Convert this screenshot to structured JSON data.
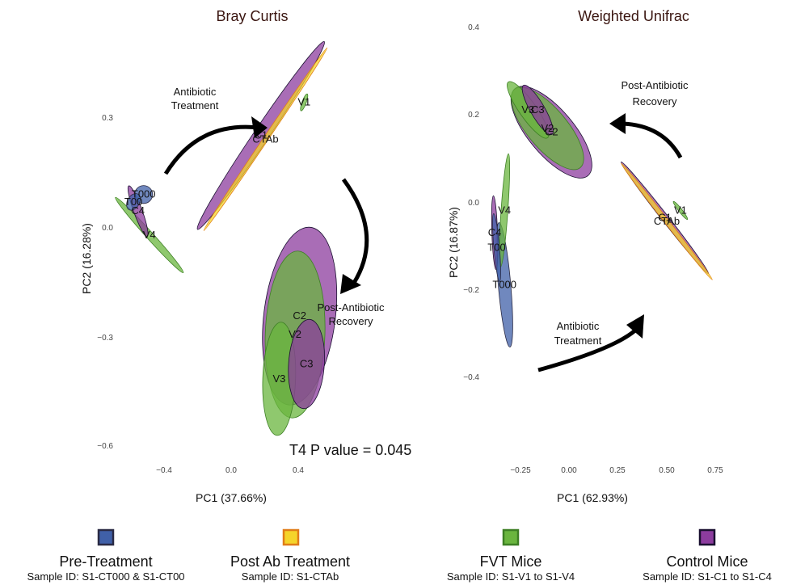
{
  "chart_data": [
    {
      "type": "scatter",
      "title": "Bray Curtis",
      "xlabel": "PC1  (37.66%)",
      "ylabel": "PC2  (16.28%)",
      "x_ticks": [
        "−0.4",
        "0.0",
        "0.4"
      ],
      "y_ticks": [
        "0.3",
        "0.0",
        "−0.3",
        "−0.6"
      ],
      "xlim": [
        -0.6,
        0.82
      ],
      "ylim": [
        -0.62,
        0.52
      ],
      "ellipses": [
        {
          "label": "T000",
          "group": "Pre-Treatment",
          "cx": -0.395,
          "cy": 0.08,
          "rx": 0.03,
          "ry": 0.03,
          "angle": 0
        },
        {
          "label": "T00",
          "group": "Pre-Treatment",
          "cx": -0.44,
          "cy": 0.06,
          "rx": 0.03,
          "ry": 0.02,
          "angle": 60
        },
        {
          "label": "C4",
          "group": "Control Mice",
          "cx": -0.42,
          "cy": 0.035,
          "rx": 0.09,
          "ry": 0.014,
          "angle": -70
        },
        {
          "label": "V4",
          "group": "FVT Mice",
          "cx": -0.37,
          "cy": -0.03,
          "rx": 0.17,
          "ry": 0.012,
          "angle": -48
        },
        {
          "label": "C1",
          "group": "Control Mice",
          "cx": 0.12,
          "cy": 0.24,
          "rx": 0.38,
          "ry": 0.025,
          "angle": 56
        },
        {
          "label": "CTAb",
          "group": "Post Ab Treatment",
          "cx": 0.14,
          "cy": 0.23,
          "rx": 0.37,
          "ry": 0.008,
          "angle": 56
        },
        {
          "label": "V1",
          "group": "FVT Mice",
          "cx": 0.31,
          "cy": 0.33,
          "rx": 0.03,
          "ry": 0.007,
          "angle": 70
        },
        {
          "label": "C2",
          "group": "Control Mice",
          "cx": 0.29,
          "cy": -0.25,
          "rx": 0.3,
          "ry": 0.12,
          "angle": -97
        },
        {
          "label": "V2",
          "group": "FVT Mice",
          "cx": 0.27,
          "cy": -0.3,
          "rx": 0.28,
          "ry": 0.1,
          "angle": -92
        },
        {
          "label": "V3",
          "group": "FVT Mice",
          "cx": 0.2,
          "cy": -0.42,
          "rx": 0.19,
          "ry": 0.055,
          "angle": 88
        },
        {
          "label": "C3",
          "group": "Control Mice",
          "cx": 0.32,
          "cy": -0.38,
          "rx": 0.15,
          "ry": 0.06,
          "angle": -94
        }
      ],
      "annotations": [
        {
          "text": [
            "Antibiotic",
            "Treatment"
          ]
        },
        {
          "text": [
            "Post-Antibiotic",
            "Recovery"
          ]
        },
        {
          "text": [
            "T4 P value = 0.045"
          ]
        }
      ]
    },
    {
      "type": "scatter",
      "title": "Weighted Unifrac",
      "xlabel": "PC1  (62.93%)",
      "ylabel": "PC2  (16.87%)",
      "x_ticks": [
        "−0.25",
        "0.00",
        "0.25",
        "0.50",
        "0.75"
      ],
      "y_ticks": [
        "0.4",
        "0.2",
        "0.0",
        "−0.2",
        "−0.4"
      ],
      "xlim": [
        -0.4,
        0.84
      ],
      "ylim": [
        -0.52,
        0.5
      ],
      "ellipses": [
        {
          "label": "V3",
          "group": "FVT Mice",
          "cx": -0.18,
          "cy": 0.27,
          "rx": 0.12,
          "ry": 0.03,
          "angle": -55
        },
        {
          "label": "C3",
          "group": "Control Mice",
          "cx": -0.13,
          "cy": 0.27,
          "rx": 0.1,
          "ry": 0.025,
          "angle": -60
        },
        {
          "label": "C2",
          "group": "Control Mice",
          "cx": -0.06,
          "cy": 0.21,
          "rx": 0.2,
          "ry": 0.08,
          "angle": -50
        },
        {
          "label": "V2",
          "group": "FVT Mice",
          "cx": -0.08,
          "cy": 0.22,
          "rx": 0.18,
          "ry": 0.07,
          "angle": -50
        },
        {
          "label": "V4",
          "group": "FVT Mice",
          "cx": -0.3,
          "cy": 0.0,
          "rx": 0.2,
          "ry": 0.012,
          "angle": 86
        },
        {
          "label": "C4",
          "group": "Control Mice",
          "cx": -0.35,
          "cy": -0.06,
          "rx": 0.13,
          "ry": 0.01,
          "angle": 92
        },
        {
          "label": "T00",
          "group": "Pre-Treatment",
          "cx": -0.34,
          "cy": -0.1,
          "rx": 0.12,
          "ry": 0.01,
          "angle": 95
        },
        {
          "label": "T000",
          "group": "Pre-Treatment",
          "cx": -0.3,
          "cy": -0.2,
          "rx": 0.22,
          "ry": 0.022,
          "angle": 95
        },
        {
          "label": "C1",
          "group": "Control Mice",
          "cx": 0.52,
          "cy": -0.02,
          "rx": 0.25,
          "ry": 0.012,
          "angle": -52
        },
        {
          "label": "CTAb",
          "group": "Post Ab Treatment",
          "cx": 0.53,
          "cy": -0.03,
          "rx": 0.26,
          "ry": 0.008,
          "angle": -52
        },
        {
          "label": "V1",
          "group": "FVT Mice",
          "cx": 0.6,
          "cy": 0.0,
          "rx": 0.04,
          "ry": 0.006,
          "angle": -52
        }
      ],
      "annotations": [
        {
          "text": [
            "Post-Antibiotic",
            "Recovery"
          ]
        },
        {
          "text": [
            "Antibiotic",
            "Treatment"
          ]
        }
      ]
    }
  ],
  "legend": [
    {
      "title": "Pre-Treatment",
      "subtitle": "Sample ID: S1-CT000 & S1-CT00",
      "fill": "#4060a8",
      "stroke": "#2a2a44"
    },
    {
      "title": "Post Ab Treatment",
      "subtitle": "Sample ID: S1-CTAb",
      "fill": "#f5d42a",
      "stroke": "#e07c18"
    },
    {
      "title": "FVT Mice",
      "subtitle": "Sample ID: S1-V1 to S1-V4",
      "fill": "#6ab53e",
      "stroke": "#3d7f24"
    },
    {
      "title": "Control Mice",
      "subtitle": "Sample ID: S1-C1 to S1-C4",
      "fill": "#8c3c9e",
      "stroke": "#1a1030"
    }
  ],
  "colors": {
    "Pre-Treatment": "#4060a8",
    "Post Ab Treatment": "#f5d42a",
    "FVT Mice": "#6ab53e",
    "Control Mice": "#8c3c9e"
  }
}
